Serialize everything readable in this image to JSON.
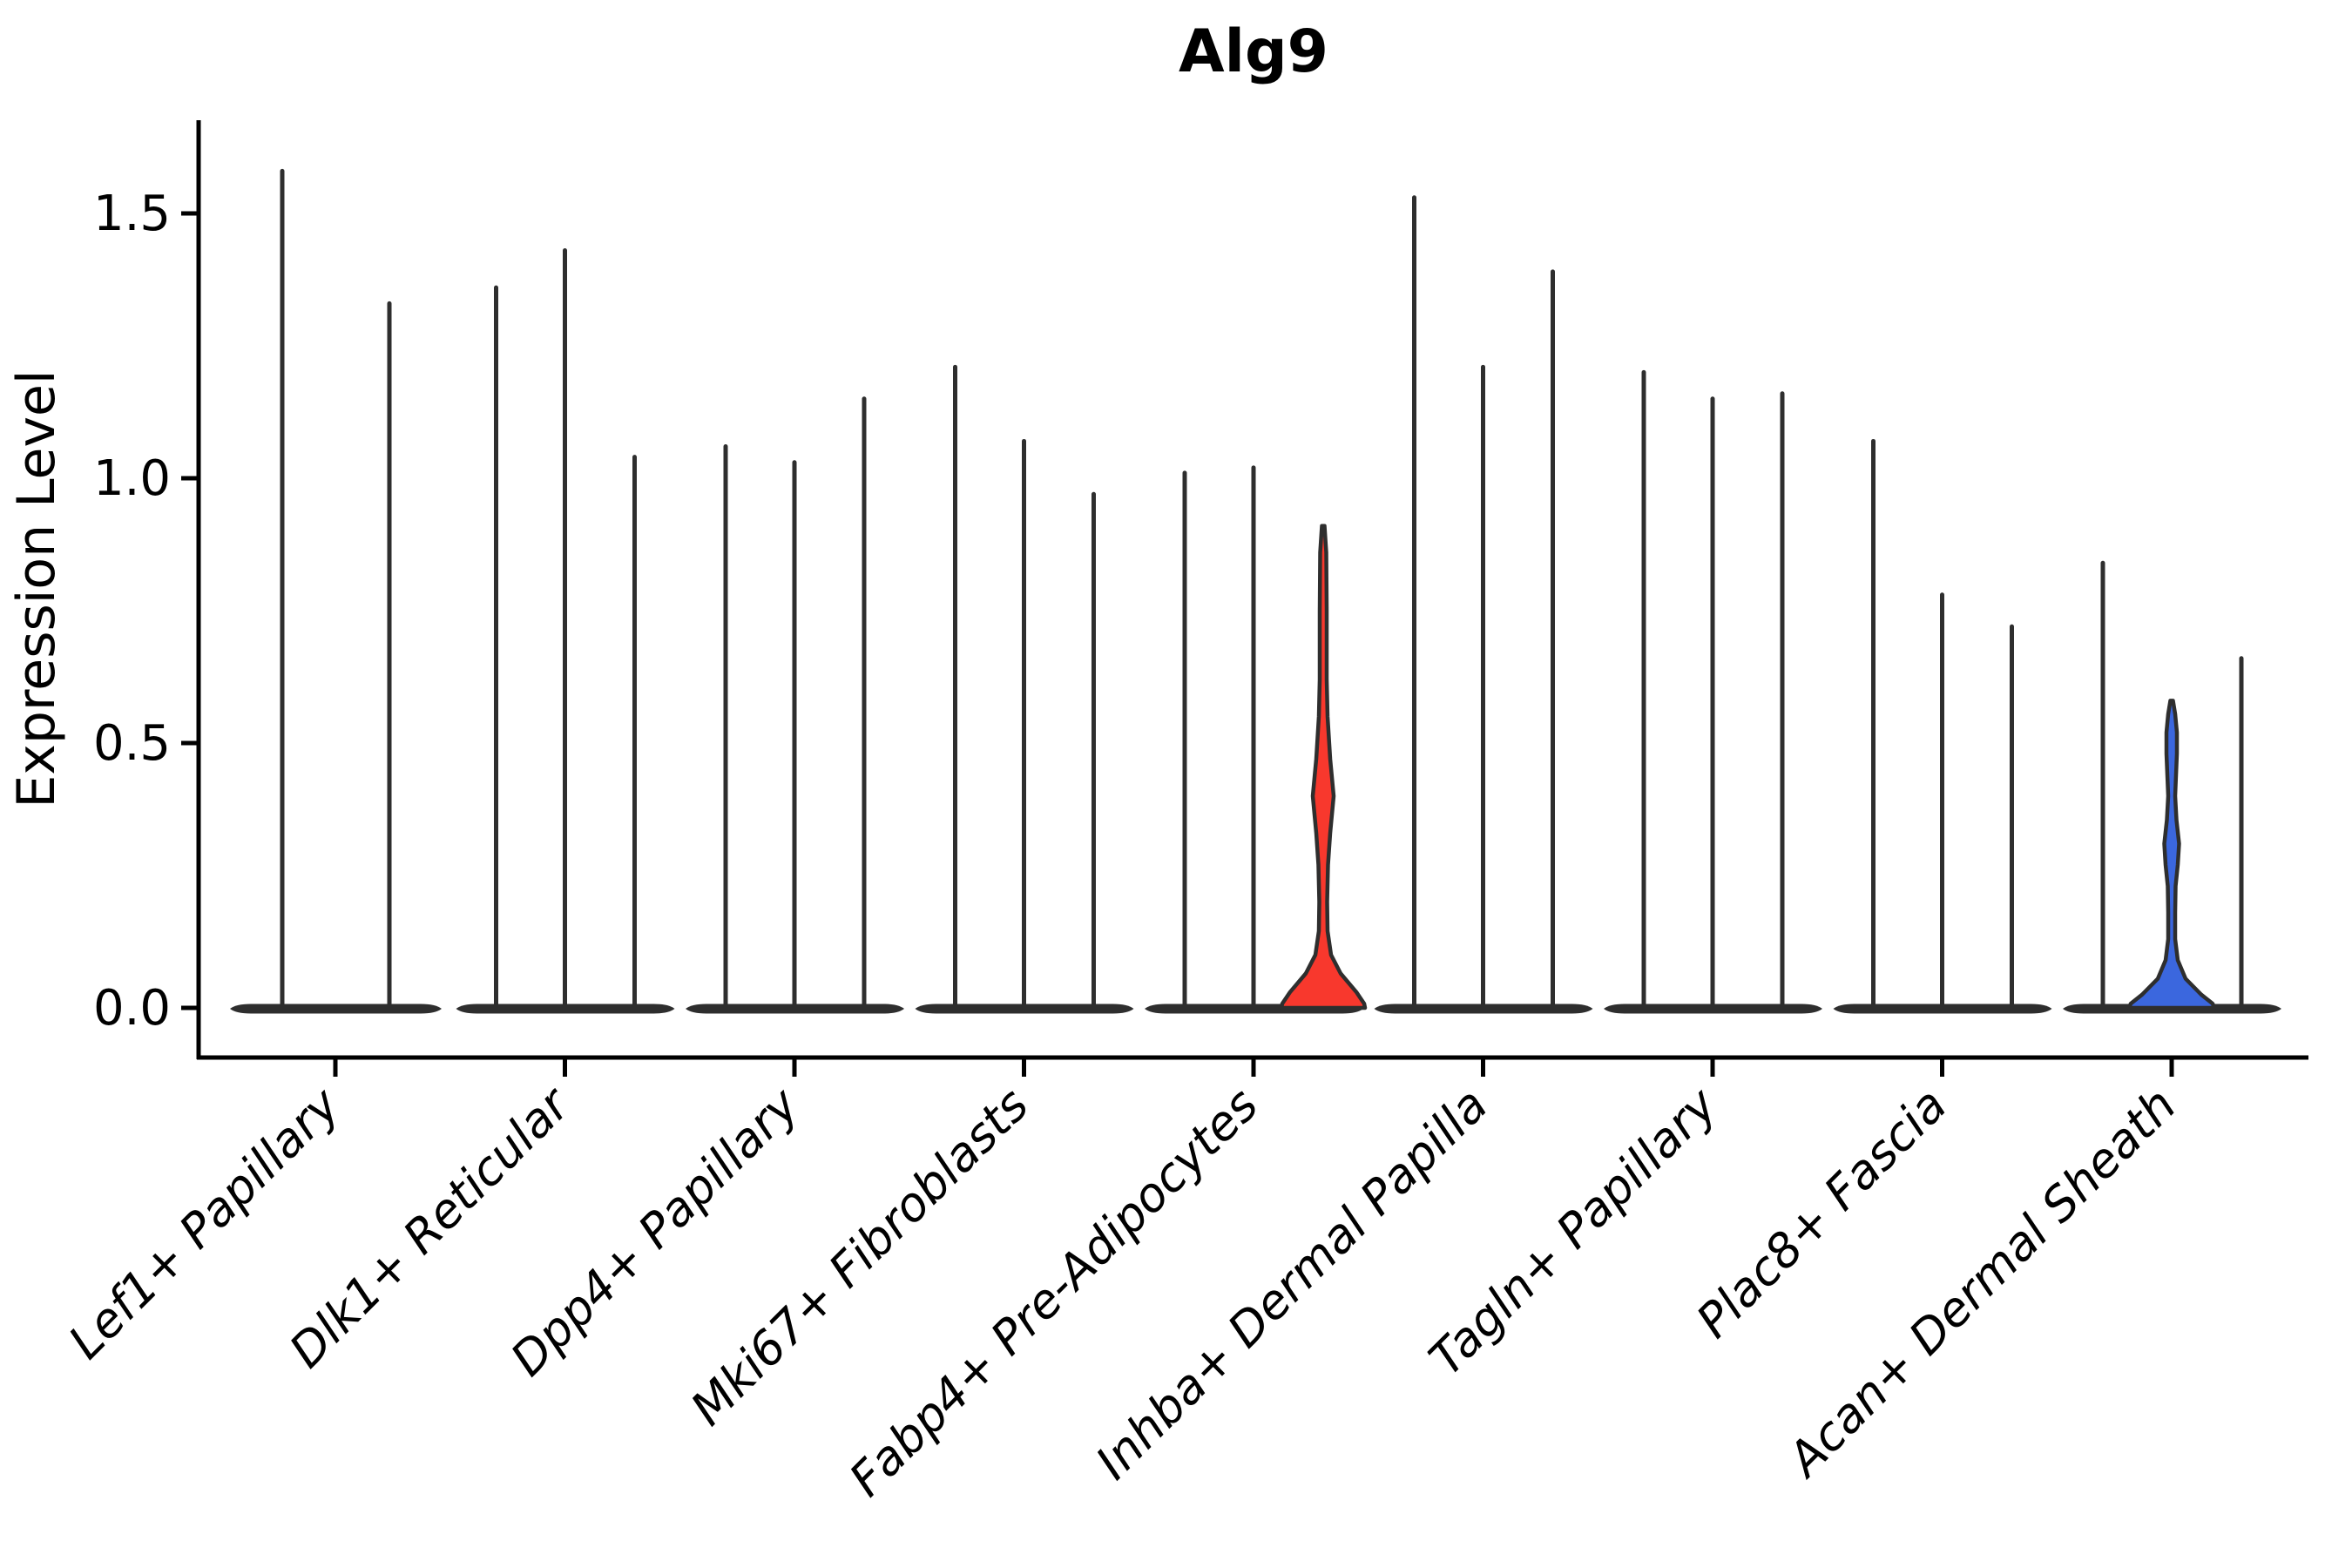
{
  "title": "Alg9",
  "y_axis": {
    "label": "Expression Level"
  },
  "colors": {
    "violin_stroke": "#2e2e2e",
    "highlight_red": "#f8382d",
    "highlight_blue": "#3b67de",
    "axis": "#000000"
  },
  "chart_data": {
    "type": "violin",
    "title": "Alg9",
    "xlabel": "",
    "ylabel": "Expression Level",
    "ylim": [
      -0.09,
      1.67
    ],
    "grid": false,
    "legend": "none",
    "yticks": [
      {
        "value": 0.0,
        "label": "0.0"
      },
      {
        "value": 0.5,
        "label": "0.5"
      },
      {
        "value": 1.0,
        "label": "1.0"
      },
      {
        "value": 1.5,
        "label": "1.5"
      }
    ],
    "categories": [
      "Lef1+ Papillary",
      "Dlk1+ Reticular",
      "Dpp4+ Papillary",
      "Mki67+ Fibroblasts",
      "Fabp4+ Pre-Adipocytes",
      "Inhba+ Dermal Papilla",
      "Tagln+ Papillary",
      "Plac8+ Fascia",
      "Acan+ Dermal Sheath"
    ],
    "groups": [
      {
        "category": "Lef1+ Papillary",
        "violins": [
          {
            "max": 1.58,
            "fill": "none"
          },
          {
            "max": 1.33,
            "fill": "none"
          }
        ]
      },
      {
        "category": "Dlk1+ Reticular",
        "violins": [
          {
            "max": 1.36,
            "fill": "none"
          },
          {
            "max": 1.43,
            "fill": "none"
          },
          {
            "max": 1.04,
            "fill": "none"
          }
        ]
      },
      {
        "category": "Dpp4+ Papillary",
        "violins": [
          {
            "max": 1.06,
            "fill": "none"
          },
          {
            "max": 1.03,
            "fill": "none"
          },
          {
            "max": 1.15,
            "fill": "none"
          }
        ]
      },
      {
        "category": "Mki67+ Fibroblasts",
        "violins": [
          {
            "max": 1.21,
            "fill": "none"
          },
          {
            "max": 1.07,
            "fill": "none"
          },
          {
            "max": 0.97,
            "fill": "none"
          }
        ]
      },
      {
        "category": "Fabp4+ Pre-Adipocytes",
        "violins": [
          {
            "max": 1.01,
            "fill": "none"
          },
          {
            "max": 1.02,
            "fill": "none"
          },
          {
            "max": 0.91,
            "fill": "#f8382d",
            "profile": [
              [
                0.91,
                1.5
              ],
              [
                0.86,
                3.5
              ],
              [
                0.75,
                4
              ],
              [
                0.62,
                4
              ],
              [
                0.55,
                5
              ],
              [
                0.47,
                8
              ],
              [
                0.4,
                12
              ],
              [
                0.33,
                8
              ],
              [
                0.27,
                5.5
              ],
              [
                0.2,
                4.5
              ],
              [
                0.145,
                5
              ],
              [
                0.1,
                9
              ],
              [
                0.065,
                20
              ],
              [
                0.03,
                38
              ],
              [
                0.008,
                47
              ],
              [
                0,
                48
              ]
            ]
          }
        ]
      },
      {
        "category": "Inhba+ Dermal Papilla",
        "violins": [
          {
            "max": 1.53,
            "fill": "none"
          },
          {
            "max": 1.21,
            "fill": "none"
          },
          {
            "max": 1.39,
            "fill": "none"
          }
        ]
      },
      {
        "category": "Tagln+ Papillary",
        "violins": [
          {
            "max": 1.2,
            "fill": "none"
          },
          {
            "max": 1.15,
            "fill": "none"
          },
          {
            "max": 1.16,
            "fill": "none"
          }
        ]
      },
      {
        "category": "Plac8+ Fascia",
        "violins": [
          {
            "max": 1.07,
            "fill": "none"
          },
          {
            "max": 0.78,
            "fill": "none"
          },
          {
            "max": 0.72,
            "fill": "none"
          }
        ]
      },
      {
        "category": "Acan+ Dermal Sheath",
        "violins": [
          {
            "max": 0.84,
            "fill": "none"
          },
          {
            "max": 0.58,
            "fill": "#3b67de",
            "profile": [
              [
                0.58,
                1.5
              ],
              [
                0.555,
                4
              ],
              [
                0.52,
                6
              ],
              [
                0.48,
                6
              ],
              [
                0.44,
                5
              ],
              [
                0.4,
                4
              ],
              [
                0.355,
                5.5
              ],
              [
                0.31,
                8.5
              ],
              [
                0.27,
                7
              ],
              [
                0.23,
                4.5
              ],
              [
                0.18,
                4
              ],
              [
                0.13,
                4
              ],
              [
                0.09,
                7
              ],
              [
                0.055,
                16
              ],
              [
                0.025,
                34
              ],
              [
                0.008,
                47
              ],
              [
                0,
                49
              ]
            ]
          },
          {
            "max": 0.66,
            "fill": "none"
          }
        ]
      }
    ]
  }
}
